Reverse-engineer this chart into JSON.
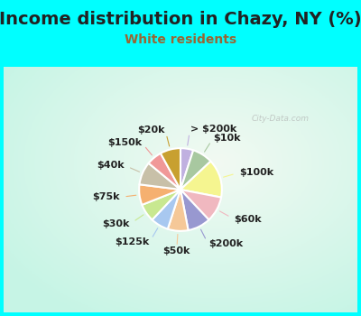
{
  "title": "Income distribution in Chazy, NY (%)",
  "subtitle": "White residents",
  "bg_color": "#00FFFF",
  "chart_bg": "#d8f5ee",
  "title_color": "#333333",
  "subtitle_color": "#996633",
  "slices": [
    {
      "label": "> $200k",
      "value": 5,
      "color": "#c0b0e0"
    },
    {
      "label": "$10k",
      "value": 8,
      "color": "#a8c8a0"
    },
    {
      "label": "$100k",
      "value": 15,
      "color": "#f5f590"
    },
    {
      "label": "$60k",
      "value": 10,
      "color": "#f0b8c0"
    },
    {
      "label": "$200k",
      "value": 9,
      "color": "#9898d0"
    },
    {
      "label": "$50k",
      "value": 8,
      "color": "#f5c898"
    },
    {
      "label": "$125k",
      "value": 7,
      "color": "#a8c8f0"
    },
    {
      "label": "$30k",
      "value": 7,
      "color": "#c8e890"
    },
    {
      "label": "$75k",
      "value": 8,
      "color": "#f5b070"
    },
    {
      "label": "$40k",
      "value": 9,
      "color": "#c8c0a8"
    },
    {
      "label": "$150k",
      "value": 6,
      "color": "#f09898"
    },
    {
      "label": "$20k",
      "value": 8,
      "color": "#c8a030"
    }
  ],
  "watermark": "City-Data.com",
  "label_fontsize": 8,
  "title_fontsize": 14,
  "subtitle_fontsize": 10,
  "title_color_hex": "#222222",
  "subtitle_color_hex": "#996633",
  "startangle": 90
}
